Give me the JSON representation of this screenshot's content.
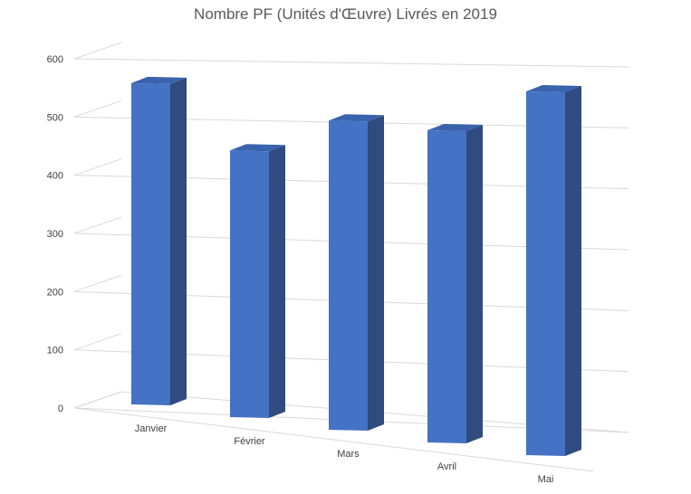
{
  "chart_data": {
    "type": "bar",
    "title": "Nombre PF (Unités d'Œuvre) Livrés en 2019",
    "xlabel": "",
    "ylabel": "",
    "categories": [
      "Janvier",
      "Février",
      "Mars",
      "Avril",
      "Mai"
    ],
    "values": [
      530,
      440,
      510,
      515,
      600
    ],
    "ylim": [
      0,
      600
    ],
    "yticks": [
      0,
      100,
      200,
      300,
      400,
      500,
      600
    ],
    "grid": true,
    "legend": "none",
    "three_d": true,
    "colors": {
      "bar_front": "#4472C4",
      "bar_side": "#2F4B80",
      "bar_top": "#3A63AD",
      "grid": "#D9D9D9",
      "tick_text": "#404040",
      "title_text": "#595959"
    }
  }
}
